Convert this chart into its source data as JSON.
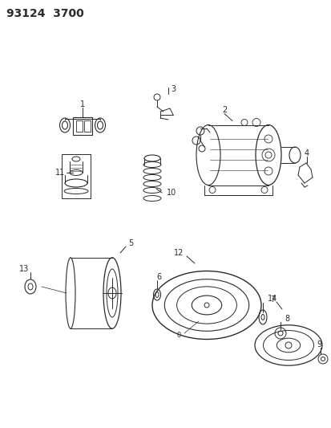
{
  "title": "93124  3700",
  "bg_color": "#ffffff",
  "line_color": "#2a2a2a",
  "title_fontsize": 10,
  "fig_width": 4.14,
  "fig_height": 5.33,
  "dpi": 100
}
